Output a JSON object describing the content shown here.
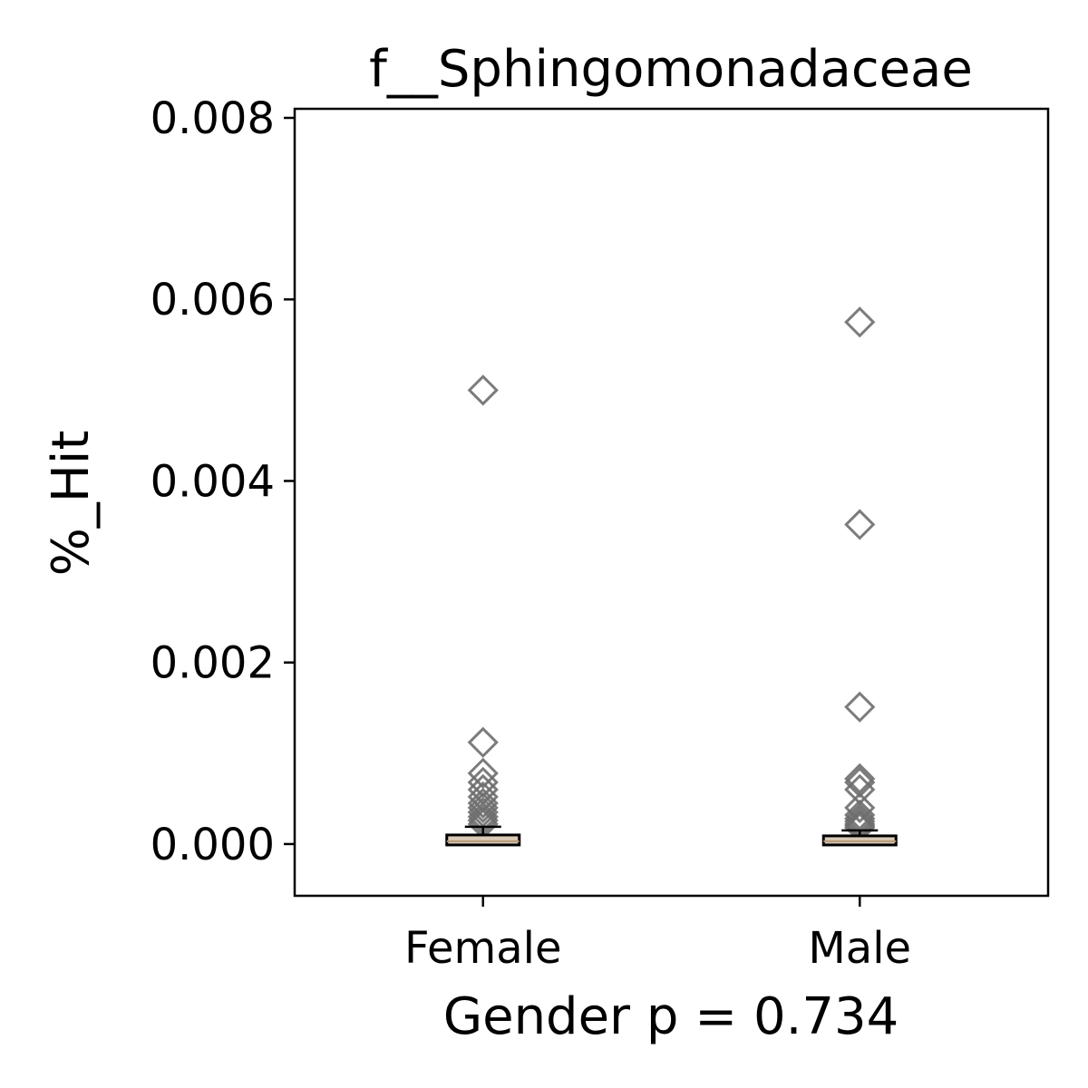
{
  "chart_data": {
    "type": "box",
    "title": "f__Sphingomonadaceae",
    "xlabel": "Gender p = 0.734",
    "ylabel": "%_Hit",
    "ylim": [
      -0.00057,
      0.0081
    ],
    "yticks": [
      0.0,
      0.002,
      0.004,
      0.006,
      0.008
    ],
    "ytick_labels": [
      "0.000",
      "0.002",
      "0.004",
      "0.006",
      "0.008"
    ],
    "categories": [
      "Female",
      "Male"
    ],
    "grid": false,
    "boxes": [
      {
        "name": "Female",
        "q1": 1e-05,
        "median": 3e-05,
        "q3": 8e-05,
        "whisker_low": 0.0,
        "whisker_high": 0.00019,
        "outliers": [
          0.005,
          0.00112,
          0.00078,
          0.00068,
          0.0006,
          0.00052,
          0.00045,
          0.0004,
          0.00035,
          0.0003,
          0.00026,
          0.00022
        ]
      },
      {
        "name": "Male",
        "q1": 1e-05,
        "median": 3e-05,
        "q3": 7e-05,
        "whisker_low": 0.0,
        "whisker_high": 0.00015,
        "outliers": [
          0.00575,
          0.00352,
          0.00151,
          0.00072,
          0.00068,
          0.0006,
          0.0004,
          0.00032,
          0.00028,
          0.00025,
          0.00022,
          0.0002,
          0.00018
        ]
      }
    ],
    "colors": {
      "box_face": "#d9c9b6",
      "outlier_edge": "#6e6e6e",
      "axis": "#000000"
    }
  }
}
